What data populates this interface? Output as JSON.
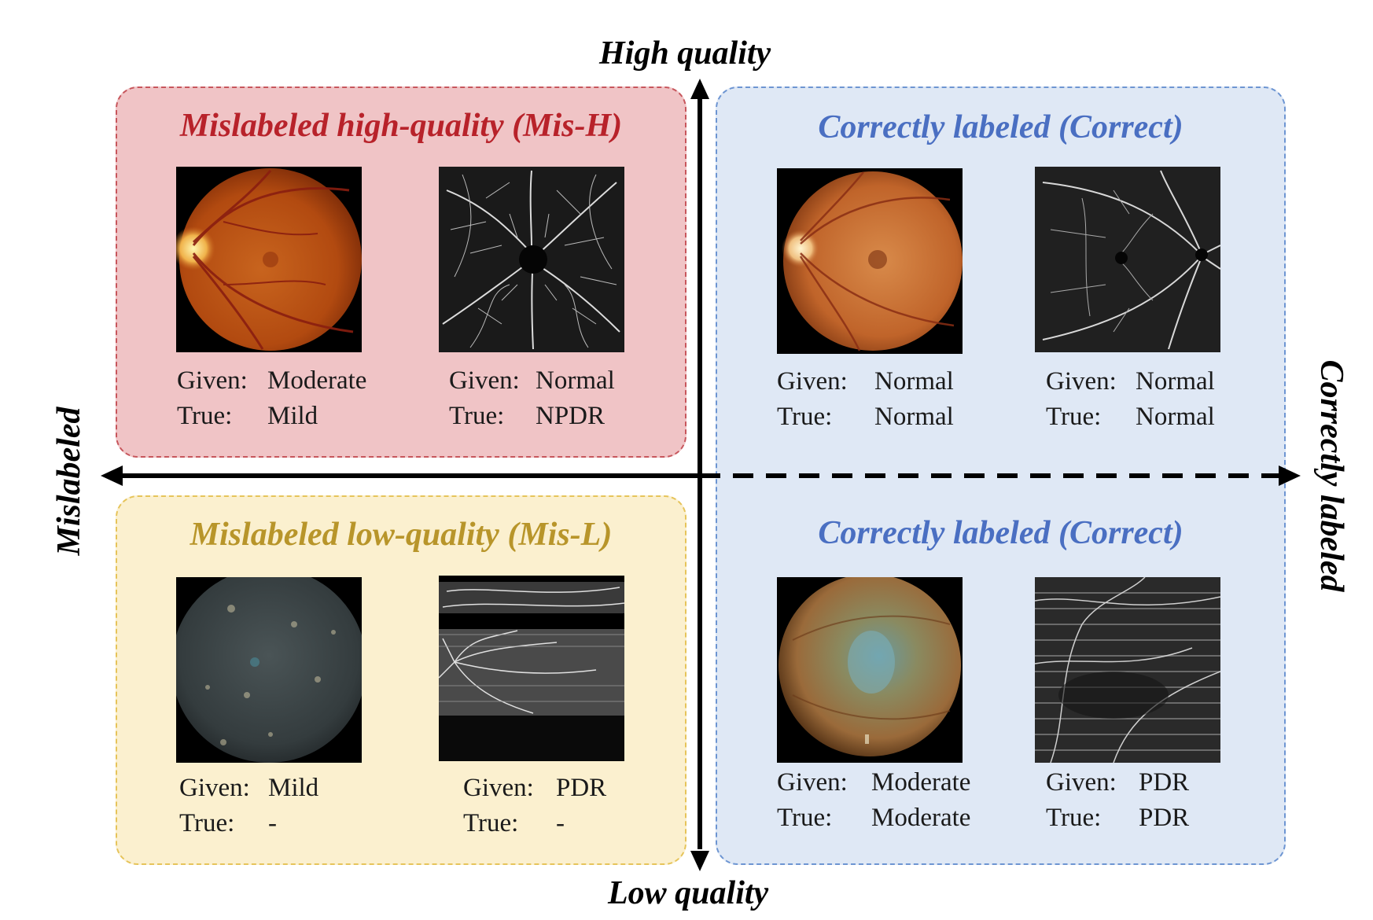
{
  "axes": {
    "top": "High quality",
    "bottom": "Low quality",
    "left": "Mislabeled",
    "right": "Correctly labeled"
  },
  "quadrants": {
    "mis_h": {
      "title_main": "Mislabeled high-quality",
      "title_acronym": "(Mis-H)",
      "color": "#b8222a",
      "bg": "#f0c4c6",
      "border": "#c7565c",
      "items": [
        {
          "image": "fundus-photo",
          "given_key": "Given:",
          "given": "Moderate",
          "true_key": "True:",
          "true": "Mild"
        },
        {
          "image": "octa-scan",
          "given_key": "Given:",
          "given": "Normal",
          "true_key": "True:",
          "true": "NPDR"
        }
      ]
    },
    "correct_h": {
      "title_main": "Correctly labeled",
      "title_acronym": "(Correct)",
      "color": "#4a6fc2",
      "bg": "#dfe8f5",
      "border": "#6d95d2",
      "items": [
        {
          "image": "fundus-photo",
          "given_key": "Given:",
          "given": "Normal",
          "true_key": "True:",
          "true": "Normal"
        },
        {
          "image": "octa-scan",
          "given_key": "Given:",
          "given": "Normal",
          "true_key": "True:",
          "true": "Normal"
        }
      ]
    },
    "mis_l": {
      "title_main": "Mislabeled low-quality",
      "title_acronym": "(Mis-L)",
      "color": "#b8952a",
      "bg": "#fbf0cf",
      "border": "#e6c45a",
      "items": [
        {
          "image": "fundus-photo-blurred",
          "given_key": "Given:",
          "given": "Mild",
          "true_key": "True:",
          "true": "-"
        },
        {
          "image": "octa-scan-artifact",
          "given_key": "Given:",
          "given": "PDR",
          "true_key": "True:",
          "true": "-"
        }
      ]
    },
    "correct_l": {
      "title_main": "Correctly labeled",
      "title_acronym": "(Correct)",
      "color": "#4a6fc2",
      "items": [
        {
          "image": "fundus-photo-hazy",
          "given_key": "Given:",
          "given": "Moderate",
          "true_key": "True:",
          "true": "Moderate"
        },
        {
          "image": "octa-scan-noisy",
          "given_key": "Given:",
          "given": "PDR",
          "true_key": "True:",
          "true": "PDR"
        }
      ]
    }
  }
}
